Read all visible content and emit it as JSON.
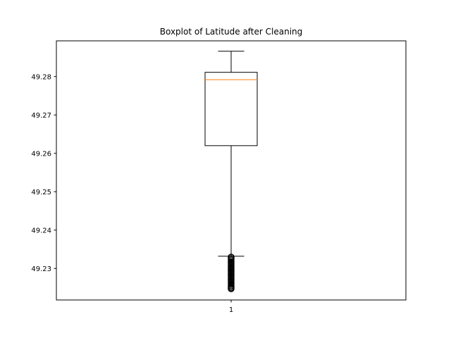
{
  "chart_data": {
    "type": "boxplot",
    "title": "Boxplot of Latitude after Cleaning",
    "xlabel": "",
    "ylabel": "",
    "categories": [
      "1"
    ],
    "ylim": [
      49.2218,
      49.2893
    ],
    "yticks": [
      49.23,
      49.24,
      49.25,
      49.26,
      49.27,
      49.28
    ],
    "ytick_labels": [
      "49.23",
      "49.24",
      "49.25",
      "49.26",
      "49.27",
      "49.28"
    ],
    "grid": false,
    "boxes": [
      {
        "category": "1",
        "whisker_low": 49.2332,
        "q1": 49.262,
        "median": 49.2792,
        "q3": 49.2811,
        "whisker_high": 49.2866,
        "outliers": [
          49.2247,
          49.225,
          49.2254,
          49.2258,
          49.2262,
          49.2266,
          49.227,
          49.2274,
          49.2278,
          49.2282,
          49.2286,
          49.229,
          49.2294,
          49.2298,
          49.2302,
          49.2306,
          49.231,
          49.2314,
          49.2318,
          49.2322,
          49.2326,
          49.233
        ]
      }
    ],
    "colors": {
      "box": "#000000",
      "median": "#ff7f0e",
      "outlier_edge": "#000000"
    }
  }
}
